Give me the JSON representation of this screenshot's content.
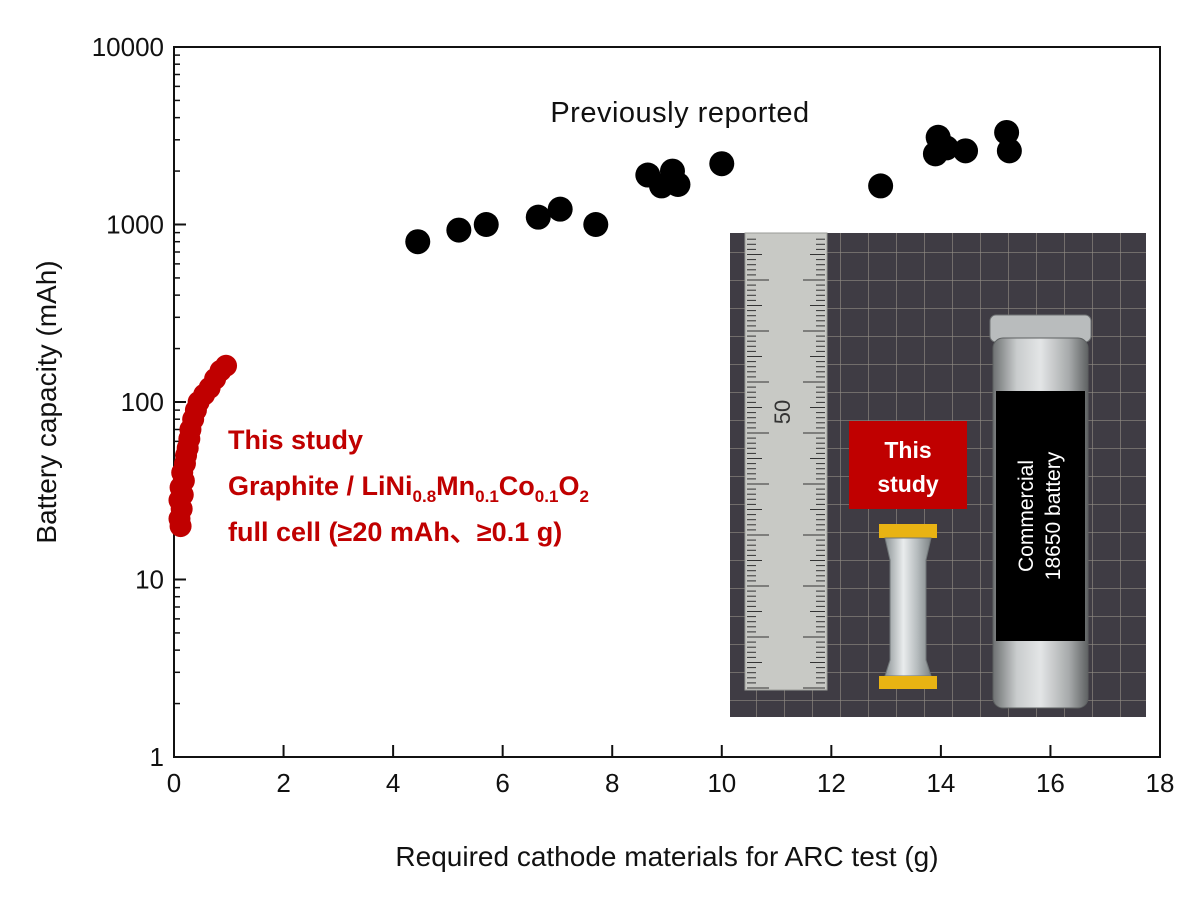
{
  "chart_data": {
    "type": "scatter",
    "xlabel": "Required cathode materials for ARC test (g)",
    "ylabel": "Battery capacity (mAh)",
    "xlim": [
      0,
      18
    ],
    "ylim": [
      1,
      10000
    ],
    "yscale": "log",
    "x_ticks": [
      "0",
      "2",
      "4",
      "6",
      "8",
      "10",
      "12",
      "14",
      "16",
      "18"
    ],
    "y_ticks": [
      "1",
      "10",
      "100",
      "1000",
      "10000"
    ],
    "series": [
      {
        "name": "Previously reported",
        "color": "#000000",
        "points": [
          [
            4.45,
            800
          ],
          [
            5.2,
            930
          ],
          [
            5.7,
            1000
          ],
          [
            6.65,
            1100
          ],
          [
            7.05,
            1220
          ],
          [
            7.7,
            1000
          ],
          [
            8.65,
            1900
          ],
          [
            8.9,
            1650
          ],
          [
            9.1,
            2000
          ],
          [
            9.2,
            1680
          ],
          [
            10.0,
            2200
          ],
          [
            12.9,
            1650
          ],
          [
            13.95,
            3100
          ],
          [
            13.9,
            2500
          ],
          [
            14.1,
            2700
          ],
          [
            14.45,
            2600
          ],
          [
            15.2,
            3300
          ],
          [
            15.25,
            2600
          ]
        ]
      },
      {
        "name": "This study",
        "color": "#c00000",
        "points": [
          [
            0.12,
            20
          ],
          [
            0.1,
            22
          ],
          [
            0.14,
            25
          ],
          [
            0.1,
            28
          ],
          [
            0.16,
            30
          ],
          [
            0.12,
            33
          ],
          [
            0.18,
            36
          ],
          [
            0.15,
            40
          ],
          [
            0.2,
            45
          ],
          [
            0.22,
            50
          ],
          [
            0.25,
            55
          ],
          [
            0.28,
            62
          ],
          [
            0.3,
            70
          ],
          [
            0.35,
            80
          ],
          [
            0.4,
            90
          ],
          [
            0.45,
            100
          ],
          [
            0.55,
            110
          ],
          [
            0.65,
            120
          ],
          [
            0.75,
            135
          ],
          [
            0.85,
            150
          ],
          [
            0.95,
            160
          ]
        ]
      }
    ],
    "annotations": {
      "previous": "Previously reported",
      "study_line1": "This study",
      "study_line2_a": "Graphite / LiNi",
      "study_sub1": "0.8",
      "study_line2_b": "Mn",
      "study_sub2": "0.1",
      "study_line2_c": "Co",
      "study_sub3": "0.1",
      "study_line2_d": "O",
      "study_sub4": "2",
      "study_line3": "full cell (≥20 mAh、≥0.1 g)"
    },
    "inset_photo": {
      "this_study_label_line1": "This",
      "this_study_label_line2": "study",
      "commercial_label_line1": "Commercial",
      "commercial_label_line2": "18650 battery",
      "ruler_label": "50"
    }
  }
}
